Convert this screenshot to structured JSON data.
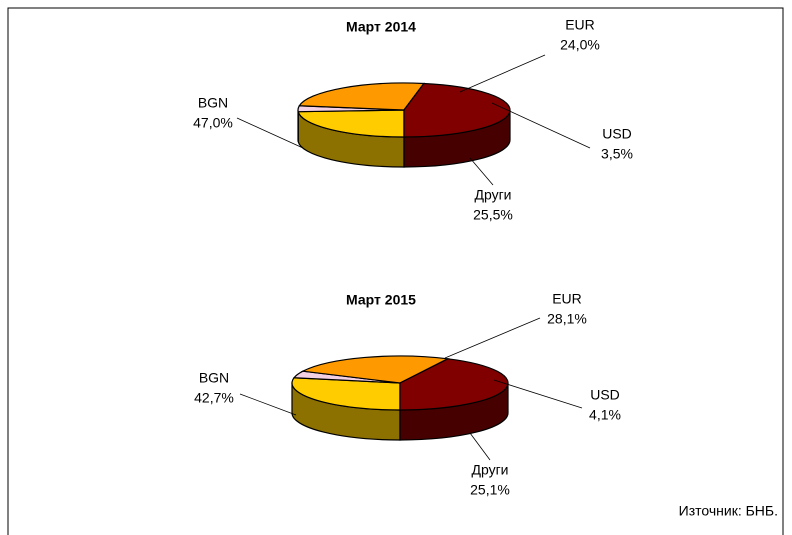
{
  "chart_data": [
    {
      "type": "pie",
      "title": "Март 2014",
      "categories": [
        "EUR",
        "USD",
        "Други",
        "BGN"
      ],
      "values": [
        24.0,
        3.5,
        25.5,
        47.0
      ],
      "value_labels": [
        "24,0%",
        "3,5%",
        "25,5%",
        "47,0%"
      ],
      "colors": [
        "#ffcc00",
        "#f4d0e4",
        "#ff9900",
        "#800000"
      ]
    },
    {
      "type": "pie",
      "title": "Март 2015",
      "categories": [
        "EUR",
        "USD",
        "Други",
        "BGN"
      ],
      "values": [
        28.1,
        4.1,
        25.1,
        42.7
      ],
      "value_labels": [
        "28,1%",
        "4,1%",
        "25,1%",
        "42,7%"
      ],
      "colors": [
        "#ffcc00",
        "#f4d0e4",
        "#ff9900",
        "#800000"
      ]
    }
  ],
  "source": "Източник: БНБ."
}
